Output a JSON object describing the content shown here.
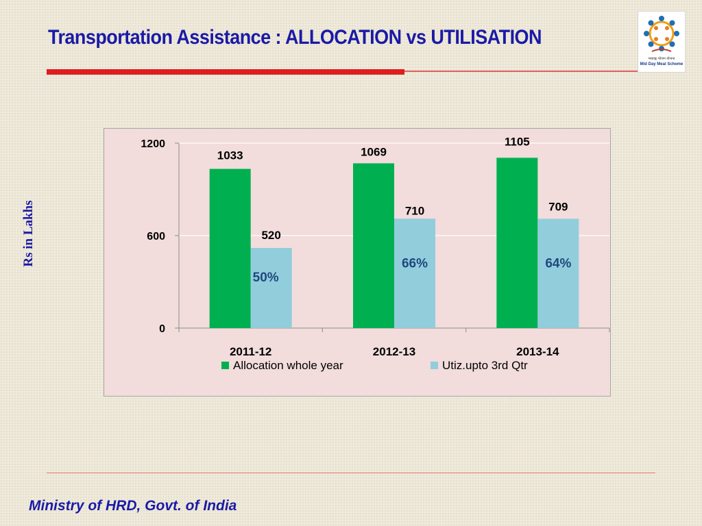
{
  "slide": {
    "title": "Transportation Assistance : ALLOCATION vs UTILISATION",
    "footer": "Ministry of HRD, Govt. of India"
  },
  "logo": {
    "caption_hindi": "मध्याह्न भोजन योजना",
    "caption_english": "Mid Day Meal Scheme",
    "icon": "mid-day-meal-logo"
  },
  "colors": {
    "title": "#1a1aa6",
    "accent_rule": "#dd1e1e",
    "allocation": "#00b050",
    "utilisation": "#92cddc",
    "percent_label": "#1f497d",
    "plot_background": "#f2dcdc"
  },
  "chart_data": {
    "type": "bar",
    "title": "",
    "xlabel": "",
    "ylabel": "Rs in Lakhs",
    "categories": [
      "2011-12",
      "2012-13",
      "2013-14"
    ],
    "series": [
      {
        "name": "Allocation whole year",
        "values": [
          1033,
          1069,
          1105
        ],
        "color": "#00b050"
      },
      {
        "name": "Utiz.upto 3rd Qtr",
        "values": [
          520,
          710,
          709
        ],
        "color": "#92cddc"
      }
    ],
    "annotations": [
      "50%",
      "66%",
      "64%"
    ],
    "ylim": [
      0,
      1200
    ],
    "yticks": [
      0,
      600,
      1200
    ],
    "grid": true,
    "legend": "bottom"
  }
}
